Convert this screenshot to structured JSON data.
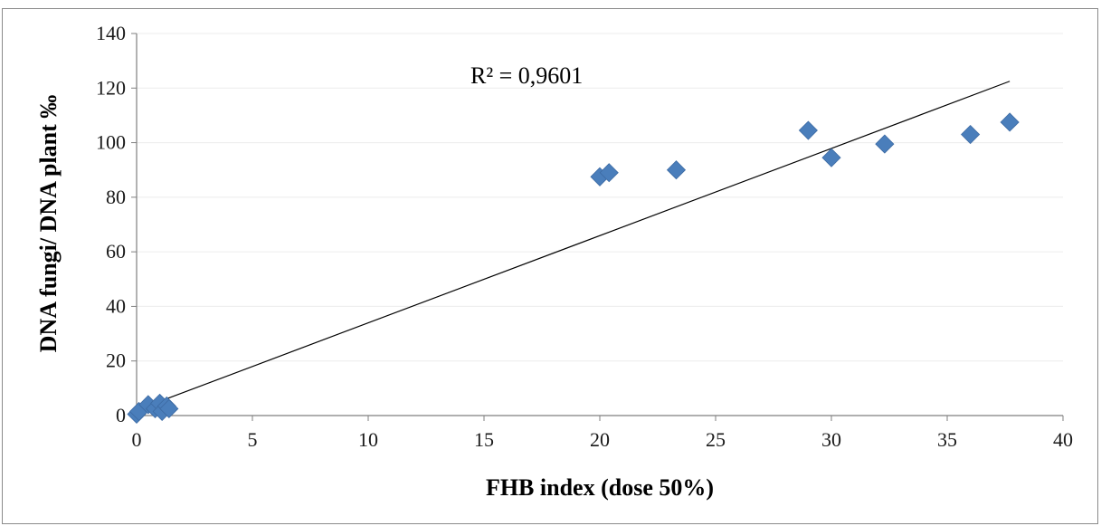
{
  "chart_data": {
    "type": "scatter",
    "xlabel": "FHB index (dose 50%)",
    "ylabel": "DNA fungi/ DNA plant ‰",
    "xlim": [
      0,
      40
    ],
    "ylim": [
      0,
      140
    ],
    "x_ticks": [
      0,
      5,
      10,
      15,
      20,
      25,
      30,
      35,
      40
    ],
    "y_ticks": [
      0,
      20,
      40,
      60,
      80,
      100,
      120,
      140
    ],
    "grid": "horizontal",
    "legend": "none",
    "series": [
      {
        "marker": "diamond",
        "color": "#4a7ebb",
        "points": [
          {
            "x": 0.0,
            "y": 0.5
          },
          {
            "x": 0.1,
            "y": 1.5
          },
          {
            "x": 0.5,
            "y": 4.0
          },
          {
            "x": 0.8,
            "y": 2.5
          },
          {
            "x": 1.0,
            "y": 4.5
          },
          {
            "x": 1.1,
            "y": 1.5
          },
          {
            "x": 1.3,
            "y": 3.5
          },
          {
            "x": 1.4,
            "y": 2.5
          },
          {
            "x": 20.0,
            "y": 87.5
          },
          {
            "x": 20.4,
            "y": 89.0
          },
          {
            "x": 23.3,
            "y": 90.0
          },
          {
            "x": 29.0,
            "y": 104.5
          },
          {
            "x": 30.0,
            "y": 94.5
          },
          {
            "x": 32.3,
            "y": 99.5
          },
          {
            "x": 36.0,
            "y": 103.0
          },
          {
            "x": 37.7,
            "y": 107.5
          }
        ]
      }
    ],
    "trendline": {
      "type": "linear",
      "x_start": 0.0,
      "y_start": 2.0,
      "x_end": 37.7,
      "y_end": 122.5,
      "color": "#000000"
    },
    "annotation": "R² = 0,9601"
  }
}
